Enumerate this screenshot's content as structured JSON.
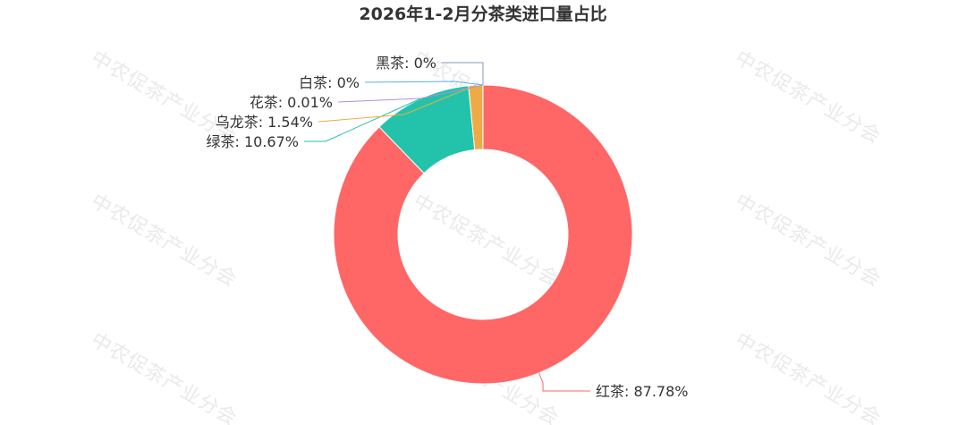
{
  "chart_data": {
    "type": "pie",
    "variant": "donut",
    "title": "2026年1-2月分茶类进口量占比",
    "watermark": "中农促茶产业分会",
    "legend": "none",
    "slices": [
      {
        "name": "红茶",
        "value": 87.78,
        "label": "红茶: 87.78%",
        "color": "#FF6666"
      },
      {
        "name": "绿茶",
        "value": 10.67,
        "label": "绿茶: 10.67%",
        "color": "#22C3AA"
      },
      {
        "name": "乌龙茶",
        "value": 1.54,
        "label": "乌龙茶: 1.54%",
        "color": "#EEAA44"
      },
      {
        "name": "花茶",
        "value": 0.01,
        "label": "花茶: 0.01%",
        "color": "#B38DE0"
      },
      {
        "name": "白茶",
        "value": 0,
        "label": "白茶: 0%",
        "color": "#5AAEE8"
      },
      {
        "name": "黑茶",
        "value": 0,
        "label": "黑茶: 0%",
        "color": "#8499B8"
      }
    ]
  }
}
